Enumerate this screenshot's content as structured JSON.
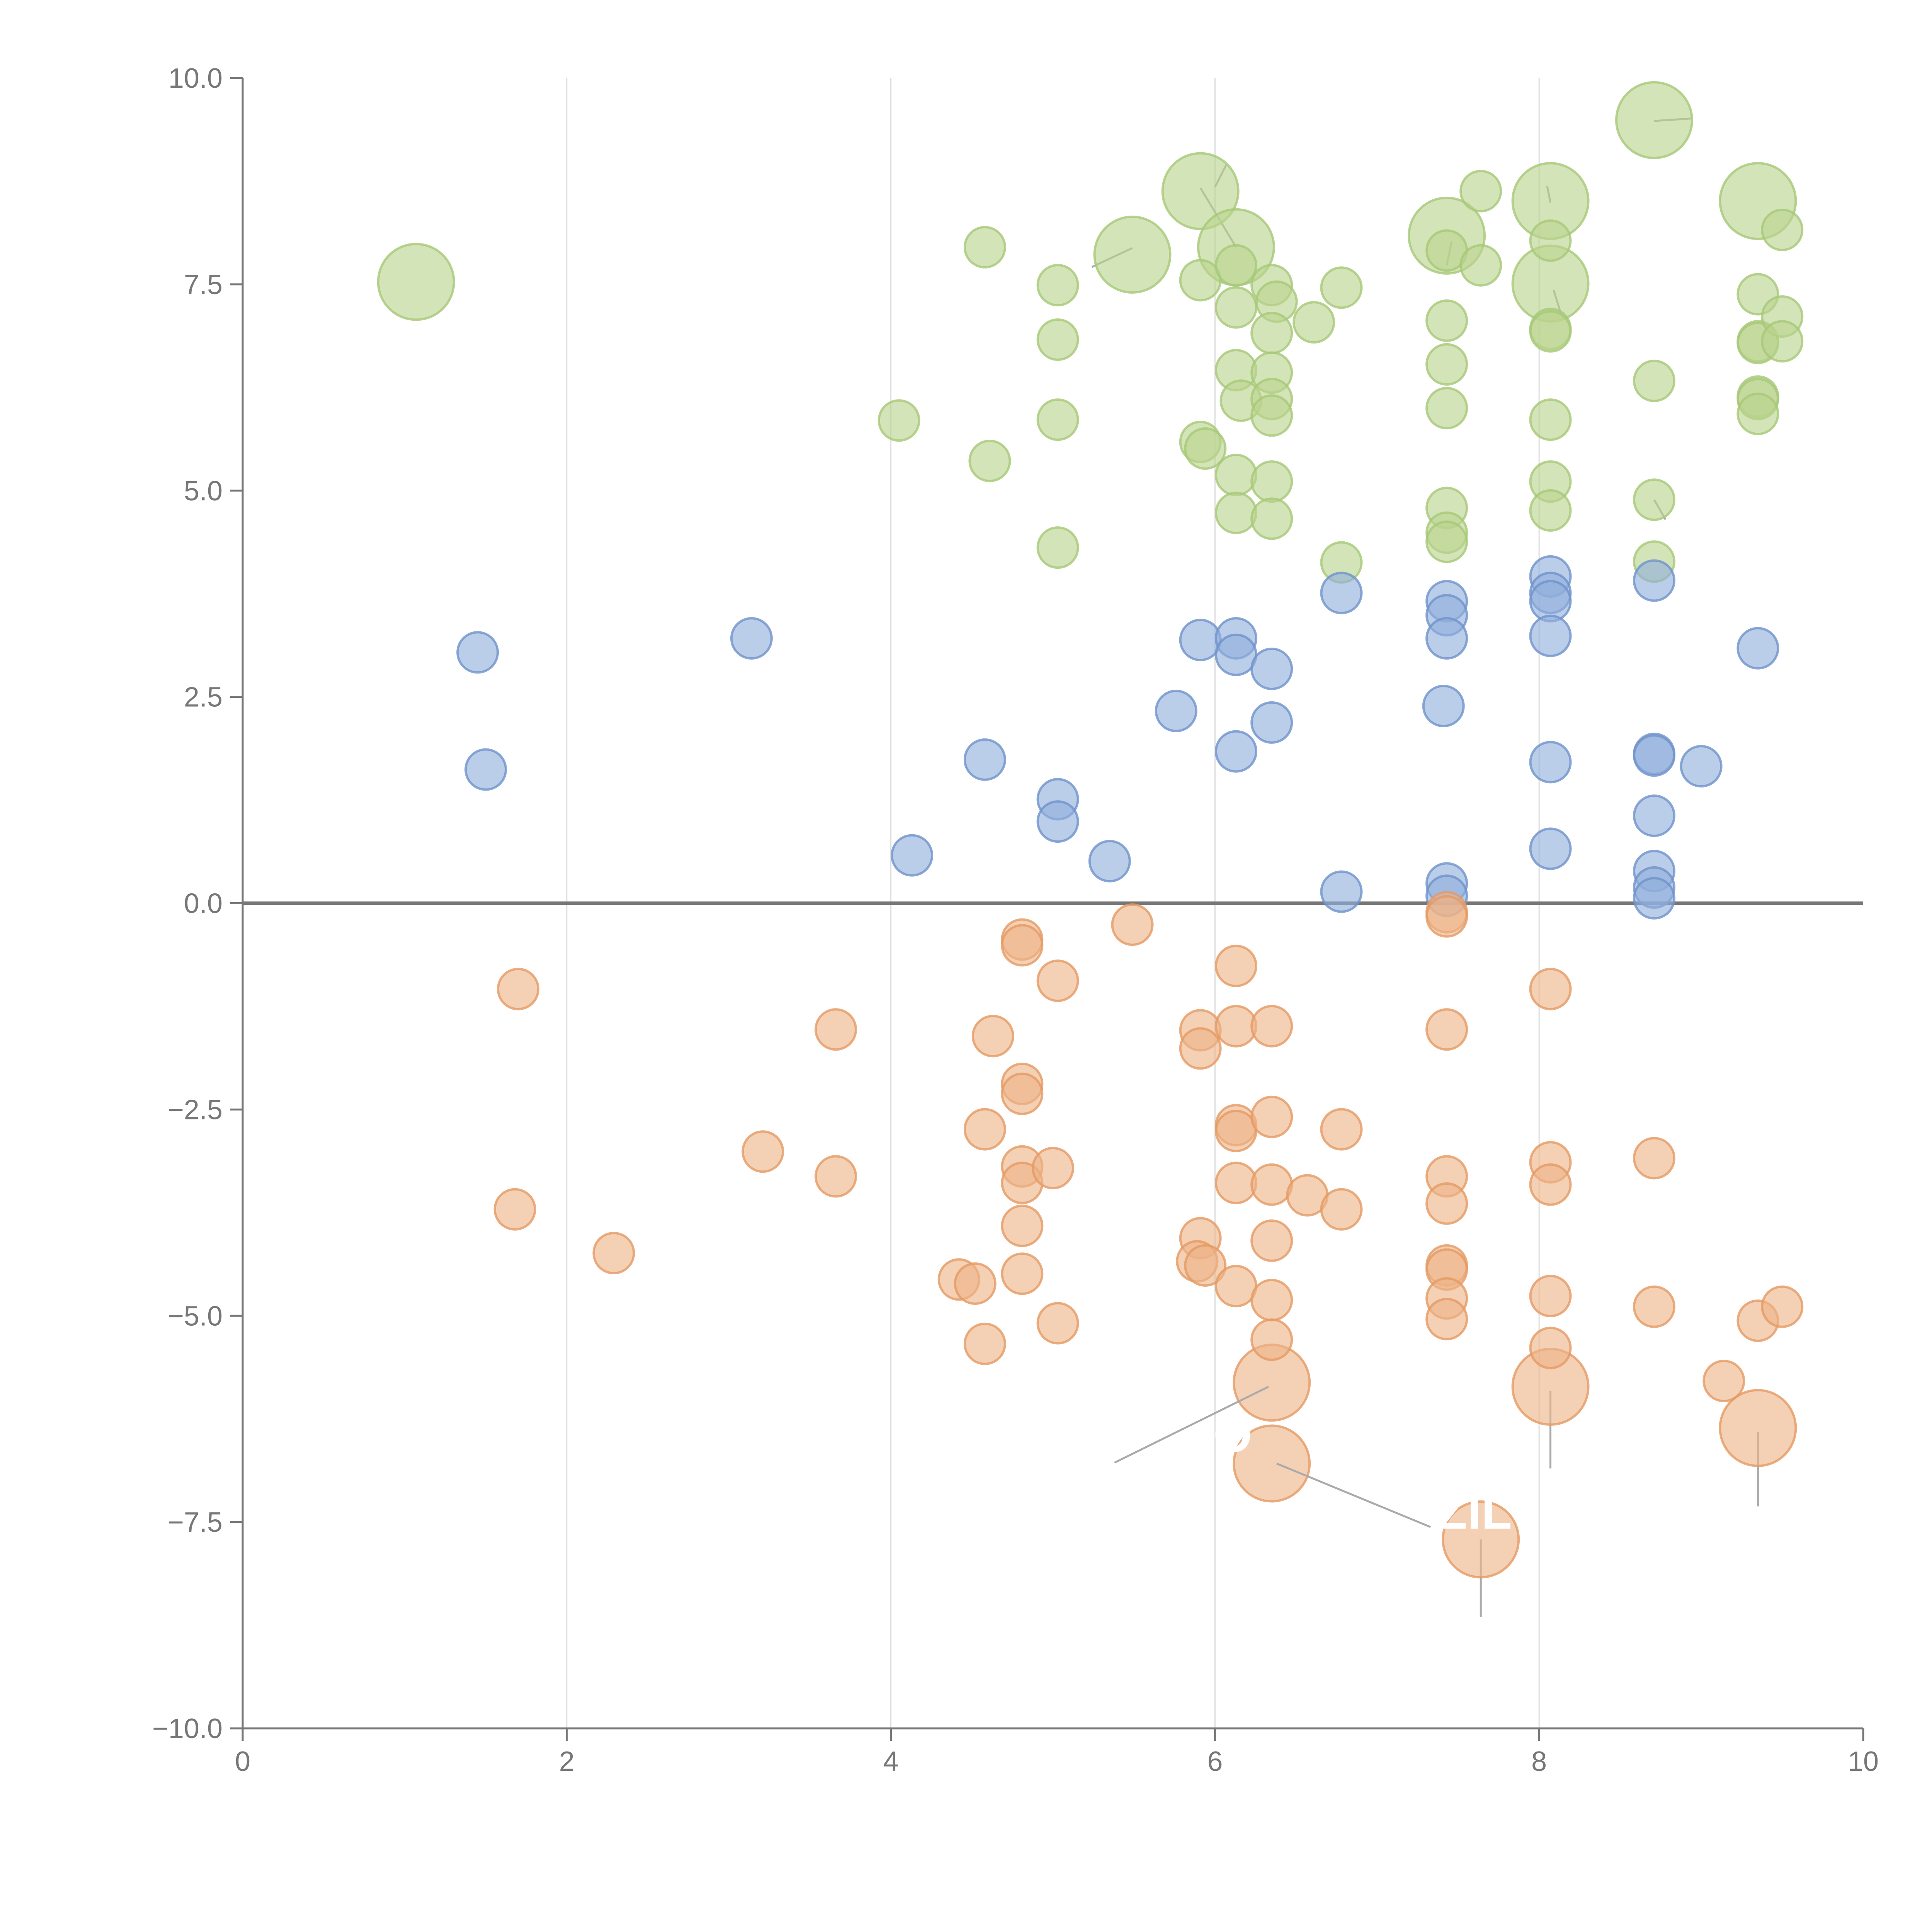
{
  "chart_data": {
    "type": "scatter",
    "title": "",
    "xlabel": "",
    "ylabel": "",
    "xlim": [
      0,
      10
    ],
    "ylim": [
      -10,
      10
    ],
    "x_ticks": [
      "0",
      "2",
      "4",
      "6",
      "8",
      "10"
    ],
    "y_ticks": [
      "10.0",
      "7.5",
      "5.0",
      "2.5",
      "0.0",
      "−2.5",
      "−5.0",
      "−7.5",
      "−10.0"
    ],
    "x_grid_values": [
      2,
      4,
      6,
      8
    ],
    "reference_line_y": 0,
    "grid": "vertical",
    "legend": "none",
    "colors": {
      "green": "#b9d48e",
      "green_stroke": "#a6c877",
      "blue": "#8faedb",
      "blue_stroke": "#6f92cb",
      "orange": "#eeb387",
      "orange_stroke": "#e59a63",
      "axis": "#777777",
      "grid": "#dddddd"
    },
    "series": [
      {
        "color_key": "green",
        "points": [
          {
            "x": 1.07,
            "y": 7.53,
            "r": "l"
          },
          {
            "x": 5.49,
            "y": 7.86,
            "r": "l"
          },
          {
            "x": 5.91,
            "y": 8.63,
            "r": "l"
          },
          {
            "x": 6.13,
            "y": 7.95,
            "r": "l"
          },
          {
            "x": 7.43,
            "y": 8.09,
            "r": "l"
          },
          {
            "x": 8.07,
            "y": 8.51,
            "r": "l"
          },
          {
            "x": 8.07,
            "y": 7.51,
            "r": "l"
          },
          {
            "x": 8.71,
            "y": 9.49,
            "r": "l"
          },
          {
            "x": 9.35,
            "y": 8.51,
            "r": "l"
          },
          {
            "x": 4.58,
            "y": 7.95
          },
          {
            "x": 5.03,
            "y": 7.49
          },
          {
            "x": 5.03,
            "y": 6.83
          },
          {
            "x": 5.03,
            "y": 5.86
          },
          {
            "x": 5.03,
            "y": 4.31
          },
          {
            "x": 4.05,
            "y": 5.85
          },
          {
            "x": 4.61,
            "y": 5.36
          },
          {
            "x": 5.91,
            "y": 7.55
          },
          {
            "x": 5.91,
            "y": 5.59
          },
          {
            "x": 5.94,
            "y": 5.51
          },
          {
            "x": 6.13,
            "y": 7.73
          },
          {
            "x": 6.13,
            "y": 7.22
          },
          {
            "x": 6.13,
            "y": 6.46
          },
          {
            "x": 6.16,
            "y": 6.09
          },
          {
            "x": 6.13,
            "y": 5.19
          },
          {
            "x": 6.13,
            "y": 4.73
          },
          {
            "x": 6.35,
            "y": 7.49
          },
          {
            "x": 6.38,
            "y": 7.29
          },
          {
            "x": 6.35,
            "y": 6.91
          },
          {
            "x": 6.35,
            "y": 6.43
          },
          {
            "x": 6.35,
            "y": 6.11
          },
          {
            "x": 6.35,
            "y": 5.91
          },
          {
            "x": 6.35,
            "y": 5.11
          },
          {
            "x": 6.35,
            "y": 4.66
          },
          {
            "x": 6.61,
            "y": 7.04
          },
          {
            "x": 6.78,
            "y": 7.46
          },
          {
            "x": 6.78,
            "y": 4.13
          },
          {
            "x": 7.43,
            "y": 7.91
          },
          {
            "x": 7.43,
            "y": 7.06
          },
          {
            "x": 7.43,
            "y": 6.53
          },
          {
            "x": 7.43,
            "y": 6.0
          },
          {
            "x": 7.43,
            "y": 4.79
          },
          {
            "x": 7.43,
            "y": 4.49
          },
          {
            "x": 7.43,
            "y": 4.38
          },
          {
            "x": 7.64,
            "y": 8.63
          },
          {
            "x": 7.64,
            "y": 7.73
          },
          {
            "x": 8.07,
            "y": 8.03
          },
          {
            "x": 8.07,
            "y": 6.96
          },
          {
            "x": 8.07,
            "y": 6.93
          },
          {
            "x": 8.07,
            "y": 5.86
          },
          {
            "x": 8.07,
            "y": 5.11
          },
          {
            "x": 8.07,
            "y": 4.76
          },
          {
            "x": 8.71,
            "y": 6.33
          },
          {
            "x": 8.71,
            "y": 4.89
          },
          {
            "x": 8.71,
            "y": 4.14
          },
          {
            "x": 9.35,
            "y": 7.38
          },
          {
            "x": 9.35,
            "y": 6.81
          },
          {
            "x": 9.35,
            "y": 6.79
          },
          {
            "x": 9.35,
            "y": 6.14
          },
          {
            "x": 9.35,
            "y": 6.11
          },
          {
            "x": 9.35,
            "y": 5.93
          },
          {
            "x": 9.5,
            "y": 8.16
          },
          {
            "x": 9.5,
            "y": 7.11
          },
          {
            "x": 9.5,
            "y": 6.81
          }
        ]
      },
      {
        "color_key": "blue",
        "points": [
          {
            "x": 1.45,
            "y": 3.04
          },
          {
            "x": 1.5,
            "y": 1.62
          },
          {
            "x": 3.14,
            "y": 3.21
          },
          {
            "x": 4.13,
            "y": 0.58
          },
          {
            "x": 4.58,
            "y": 1.74
          },
          {
            "x": 5.03,
            "y": 1.26
          },
          {
            "x": 5.03,
            "y": 0.99
          },
          {
            "x": 5.35,
            "y": 0.51
          },
          {
            "x": 5.76,
            "y": 2.33
          },
          {
            "x": 5.91,
            "y": 3.19
          },
          {
            "x": 6.13,
            "y": 3.21
          },
          {
            "x": 6.13,
            "y": 3.01
          },
          {
            "x": 6.13,
            "y": 1.84
          },
          {
            "x": 6.35,
            "y": 2.84
          },
          {
            "x": 6.35,
            "y": 2.19
          },
          {
            "x": 6.78,
            "y": 3.76
          },
          {
            "x": 6.78,
            "y": 0.14
          },
          {
            "x": 7.43,
            "y": 3.66
          },
          {
            "x": 7.43,
            "y": 3.49
          },
          {
            "x": 7.43,
            "y": 3.21
          },
          {
            "x": 7.41,
            "y": 2.39
          },
          {
            "x": 7.43,
            "y": 0.24
          },
          {
            "x": 7.43,
            "y": 0.09
          },
          {
            "x": 8.07,
            "y": 3.96
          },
          {
            "x": 8.07,
            "y": 3.76
          },
          {
            "x": 8.07,
            "y": 3.66
          },
          {
            "x": 8.07,
            "y": 3.24
          },
          {
            "x": 8.07,
            "y": 1.71
          },
          {
            "x": 8.07,
            "y": 0.66
          },
          {
            "x": 8.71,
            "y": 3.91
          },
          {
            "x": 8.71,
            "y": 1.81
          },
          {
            "x": 8.71,
            "y": 1.79
          },
          {
            "x": 8.71,
            "y": 1.06
          },
          {
            "x": 8.71,
            "y": 0.39
          },
          {
            "x": 8.71,
            "y": 0.19
          },
          {
            "x": 8.71,
            "y": 0.06
          },
          {
            "x": 9.0,
            "y": 1.66
          },
          {
            "x": 9.35,
            "y": 3.09
          }
        ]
      },
      {
        "color_key": "orange",
        "points": [
          {
            "x": 6.35,
            "y": -5.81,
            "r": "l"
          },
          {
            "x": 6.35,
            "y": -6.79,
            "r": "l"
          },
          {
            "x": 7.64,
            "y": -7.71,
            "r": "l"
          },
          {
            "x": 8.07,
            "y": -5.86,
            "r": "l"
          },
          {
            "x": 9.35,
            "y": -6.36,
            "r": "l"
          },
          {
            "x": 1.7,
            "y": -1.04
          },
          {
            "x": 1.68,
            "y": -3.71
          },
          {
            "x": 2.29,
            "y": -4.24
          },
          {
            "x": 3.21,
            "y": -3.01
          },
          {
            "x": 3.66,
            "y": -1.53
          },
          {
            "x": 3.66,
            "y": -3.31
          },
          {
            "x": 4.42,
            "y": -4.56
          },
          {
            "x": 4.52,
            "y": -4.61
          },
          {
            "x": 4.58,
            "y": -2.74
          },
          {
            "x": 4.58,
            "y": -5.34
          },
          {
            "x": 4.63,
            "y": -1.61
          },
          {
            "x": 4.81,
            "y": -0.44
          },
          {
            "x": 4.81,
            "y": -0.51
          },
          {
            "x": 4.81,
            "y": -2.19
          },
          {
            "x": 4.81,
            "y": -2.31
          },
          {
            "x": 4.81,
            "y": -3.19
          },
          {
            "x": 4.81,
            "y": -3.39
          },
          {
            "x": 4.81,
            "y": -3.91
          },
          {
            "x": 4.81,
            "y": -4.49
          },
          {
            "x": 5.03,
            "y": -0.94
          },
          {
            "x": 5.0,
            "y": -3.21
          },
          {
            "x": 5.03,
            "y": -5.09
          },
          {
            "x": 5.49,
            "y": -0.26
          },
          {
            "x": 5.91,
            "y": -1.54
          },
          {
            "x": 5.91,
            "y": -1.76
          },
          {
            "x": 5.91,
            "y": -4.06
          },
          {
            "x": 5.89,
            "y": -4.34
          },
          {
            "x": 5.94,
            "y": -4.39
          },
          {
            "x": 6.13,
            "y": -0.76
          },
          {
            "x": 6.13,
            "y": -1.49
          },
          {
            "x": 6.13,
            "y": -2.69
          },
          {
            "x": 6.13,
            "y": -2.76
          },
          {
            "x": 6.13,
            "y": -3.39
          },
          {
            "x": 6.13,
            "y": -4.64
          },
          {
            "x": 6.35,
            "y": -1.49
          },
          {
            "x": 6.35,
            "y": -2.59
          },
          {
            "x": 6.35,
            "y": -3.41
          },
          {
            "x": 6.35,
            "y": -4.09
          },
          {
            "x": 6.35,
            "y": -4.81
          },
          {
            "x": 6.35,
            "y": -5.29
          },
          {
            "x": 6.57,
            "y": -3.54
          },
          {
            "x": 6.78,
            "y": -2.74
          },
          {
            "x": 6.78,
            "y": -3.71
          },
          {
            "x": 7.43,
            "y": -0.11
          },
          {
            "x": 7.43,
            "y": -0.16
          },
          {
            "x": 7.43,
            "y": -1.53
          },
          {
            "x": 7.43,
            "y": -3.31
          },
          {
            "x": 7.43,
            "y": -3.64
          },
          {
            "x": 7.43,
            "y": -4.39
          },
          {
            "x": 7.43,
            "y": -4.44
          },
          {
            "x": 7.43,
            "y": -4.79
          },
          {
            "x": 7.43,
            "y": -5.04
          },
          {
            "x": 8.07,
            "y": -1.04
          },
          {
            "x": 8.07,
            "y": -3.14
          },
          {
            "x": 8.07,
            "y": -3.41
          },
          {
            "x": 8.07,
            "y": -4.76
          },
          {
            "x": 8.07,
            "y": -5.39
          },
          {
            "x": 8.71,
            "y": -3.09
          },
          {
            "x": 8.71,
            "y": -4.89
          },
          {
            "x": 9.14,
            "y": -5.79
          },
          {
            "x": 9.35,
            "y": -5.06
          },
          {
            "x": 9.5,
            "y": -4.89
          }
        ]
      }
    ],
    "annotations": [
      {
        "text": "O",
        "label_x": 6.11,
        "label_y": -6.65,
        "line": [
          [
            5.38,
            -6.78
          ],
          [
            6.33,
            -5.86
          ]
        ]
      },
      {
        "text": "ZIL",
        "label_x": 7.6,
        "label_y": -7.58,
        "line": [
          [
            6.38,
            -6.79
          ],
          [
            7.33,
            -7.56
          ]
        ]
      }
    ],
    "leader_lines": [
      [
        [
          7.64,
          -7.71
        ],
        [
          7.64,
          -8.65
        ]
      ],
      [
        [
          8.07,
          -5.91
        ],
        [
          8.07,
          -6.85
        ]
      ],
      [
        [
          9.35,
          -6.41
        ],
        [
          9.35,
          -7.31
        ]
      ],
      [
        [
          5.24,
          7.71
        ],
        [
          5.49,
          7.94
        ]
      ],
      [
        [
          5.91,
          8.67
        ],
        [
          6.13,
          7.95
        ]
      ],
      [
        [
          6.0,
          8.68
        ],
        [
          6.07,
          8.95
        ]
      ],
      [
        [
          7.43,
          7.73
        ],
        [
          7.46,
          8.02
        ]
      ],
      [
        [
          8.05,
          8.69
        ],
        [
          8.07,
          8.49
        ]
      ],
      [
        [
          8.09,
          7.43
        ],
        [
          8.14,
          7.11
        ]
      ],
      [
        [
          8.71,
          9.48
        ],
        [
          8.94,
          9.51
        ]
      ],
      [
        [
          8.71,
          4.89
        ],
        [
          8.78,
          4.65
        ]
      ]
    ]
  }
}
